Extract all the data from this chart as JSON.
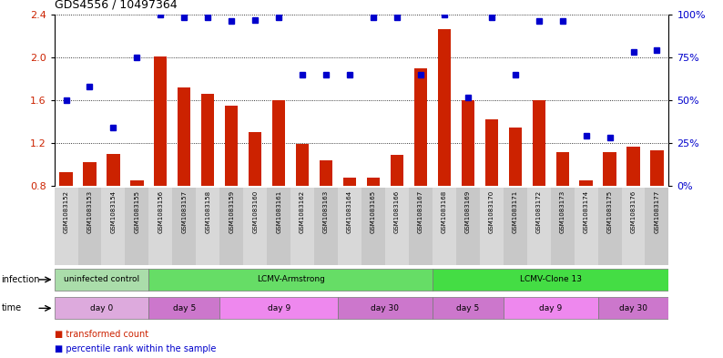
{
  "title": "GDS4556 / 10497364",
  "samples": [
    "GSM1083152",
    "GSM1083153",
    "GSM1083154",
    "GSM1083155",
    "GSM1083156",
    "GSM1083157",
    "GSM1083158",
    "GSM1083159",
    "GSM1083160",
    "GSM1083161",
    "GSM1083162",
    "GSM1083163",
    "GSM1083164",
    "GSM1083165",
    "GSM1083166",
    "GSM1083167",
    "GSM1083168",
    "GSM1083169",
    "GSM1083170",
    "GSM1083171",
    "GSM1083172",
    "GSM1083173",
    "GSM1083174",
    "GSM1083175",
    "GSM1083176",
    "GSM1083177"
  ],
  "bar_values": [
    0.93,
    1.02,
    1.1,
    0.85,
    2.01,
    1.72,
    1.66,
    1.55,
    1.3,
    1.6,
    1.19,
    1.04,
    0.88,
    0.88,
    1.09,
    1.9,
    2.26,
    1.6,
    1.42,
    1.35,
    1.6,
    1.12,
    0.85,
    1.12,
    1.17,
    1.13
  ],
  "dot_values": [
    1.6,
    1.73,
    1.35,
    2.0,
    2.4,
    2.37,
    2.37,
    2.34,
    2.35,
    2.37,
    1.84,
    1.84,
    1.84,
    2.37,
    2.37,
    1.84,
    2.4,
    1.63,
    2.37,
    1.84,
    2.34,
    2.34,
    1.27,
    1.25,
    2.05,
    2.07
  ],
  "ylim_left": [
    0.8,
    2.4
  ],
  "ylim_right": [
    0,
    100
  ],
  "yticks_left": [
    0.8,
    1.2,
    1.6,
    2.0,
    2.4
  ],
  "yticks_right": [
    0,
    25,
    50,
    75,
    100
  ],
  "bar_color": "#cc2200",
  "dot_color": "#0000cc",
  "col_colors_chart": [
    "#ffffff",
    "#ffffff"
  ],
  "col_colors_labels": [
    "#d8d8d8",
    "#c8c8c8"
  ],
  "infection_groups": [
    {
      "label": "uninfected control",
      "start": 0,
      "end": 4,
      "color": "#aaddaa"
    },
    {
      "label": "LCMV-Armstrong",
      "start": 4,
      "end": 16,
      "color": "#66dd66"
    },
    {
      "label": "LCMV-Clone 13",
      "start": 16,
      "end": 26,
      "color": "#44dd44"
    }
  ],
  "time_groups": [
    {
      "label": "day 0",
      "start": 0,
      "end": 4,
      "color": "#ddaadd"
    },
    {
      "label": "day 5",
      "start": 4,
      "end": 7,
      "color": "#cc77cc"
    },
    {
      "label": "day 9",
      "start": 7,
      "end": 12,
      "color": "#ee88ee"
    },
    {
      "label": "day 30",
      "start": 12,
      "end": 16,
      "color": "#cc77cc"
    },
    {
      "label": "day 5",
      "start": 16,
      "end": 19,
      "color": "#cc77cc"
    },
    {
      "label": "day 9",
      "start": 19,
      "end": 23,
      "color": "#ee88ee"
    },
    {
      "label": "day 30",
      "start": 23,
      "end": 26,
      "color": "#cc77cc"
    }
  ]
}
